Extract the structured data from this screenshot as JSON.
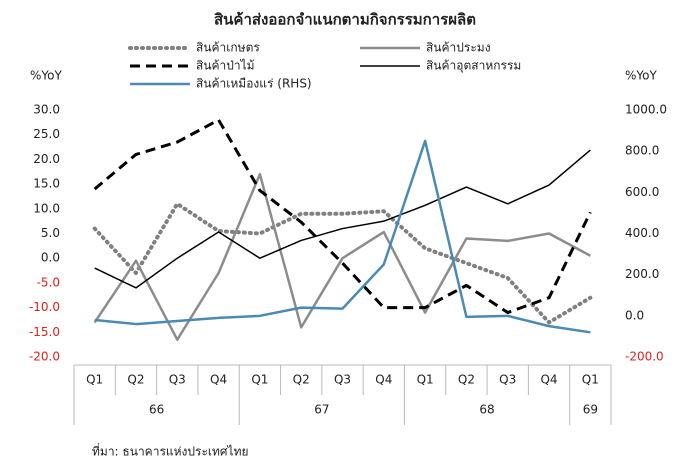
{
  "chart_data": {
    "type": "line",
    "title": "สินค้าส่งออกจำแนกตามกิจกรรมการผลิต",
    "ylabel": "%YoY",
    "y2label": "%YoY",
    "source": "ที่มา: ธนาคารแห่งประเทศไทย",
    "categories": [
      {
        "quarter": "Q1",
        "year": "66"
      },
      {
        "quarter": "Q2",
        "year": "66"
      },
      {
        "quarter": "Q3",
        "year": "66"
      },
      {
        "quarter": "Q4",
        "year": "66"
      },
      {
        "quarter": "Q1",
        "year": "67"
      },
      {
        "quarter": "Q2",
        "year": "67"
      },
      {
        "quarter": "Q3",
        "year": "67"
      },
      {
        "quarter": "Q4",
        "year": "67"
      },
      {
        "quarter": "Q1",
        "year": "68"
      },
      {
        "quarter": "Q2",
        "year": "68"
      },
      {
        "quarter": "Q3",
        "year": "68"
      },
      {
        "quarter": "Q4",
        "year": "68"
      },
      {
        "quarter": "Q1",
        "year": "69"
      }
    ],
    "ylim": [
      -20,
      30
    ],
    "yticks": [
      {
        "value": -20,
        "label": "-20.0"
      },
      {
        "value": -15,
        "label": "-15.0"
      },
      {
        "value": -10,
        "label": "-10.0"
      },
      {
        "value": -5,
        "label": "-5.0"
      },
      {
        "value": 0,
        "label": "0.0"
      },
      {
        "value": 5,
        "label": "5.0"
      },
      {
        "value": 10,
        "label": "10.0"
      },
      {
        "value": 15,
        "label": "15.0"
      },
      {
        "value": 20,
        "label": "20.0"
      },
      {
        "value": 25,
        "label": "25.0"
      },
      {
        "value": 30,
        "label": "30.0"
      }
    ],
    "y2lim": [
      -200,
      1000
    ],
    "y2ticks": [
      {
        "value": -200,
        "label": "-200.0"
      },
      {
        "value": 0,
        "label": "0.0"
      },
      {
        "value": 200,
        "label": "200.0"
      },
      {
        "value": 400,
        "label": "400.0"
      },
      {
        "value": 600,
        "label": "600.0"
      },
      {
        "value": 800,
        "label": "800.0"
      },
      {
        "value": 1000,
        "label": "1000.0"
      }
    ],
    "negative_tick_color": "#e0201c",
    "series": [
      {
        "name": "สินค้าเกษตร",
        "color": "#808080",
        "style": "dotted",
        "values": [
          6,
          -3,
          11,
          5.5,
          5,
          9,
          9,
          9.5,
          2,
          -1,
          -4,
          -13,
          -8
        ]
      },
      {
        "name": "สินค้าประมง",
        "color": "#8c8c8c",
        "style": "solid",
        "values": [
          -13,
          -0.5,
          -16.5,
          -3,
          17,
          -14,
          0,
          5.3,
          -11,
          4,
          3.5,
          5,
          0.5
        ]
      },
      {
        "name": "สินค้าป่าไม้",
        "color": "#000000",
        "style": "dashed",
        "values": [
          14,
          21,
          23.5,
          28,
          13.7,
          7.3,
          -1,
          -10,
          -10,
          -5.5,
          -11,
          -8,
          9.3
        ]
      },
      {
        "name": "สินค้าอุตสาหกรรม",
        "color": "#000000",
        "style": "thin",
        "values": [
          -2,
          -6,
          0,
          5.3,
          0,
          3.6,
          6,
          7.5,
          10.7,
          14.4,
          11,
          14.8,
          21.9
        ]
      },
      {
        "name": "สินค้าเหมืองแร่ (RHS)",
        "color": "#4a8ab5",
        "style": "solid",
        "axis": "y2",
        "values": [
          -20,
          -40,
          -25,
          -10,
          0,
          40,
          35,
          250,
          850,
          -5,
          0,
          -50,
          -80
        ]
      }
    ]
  }
}
